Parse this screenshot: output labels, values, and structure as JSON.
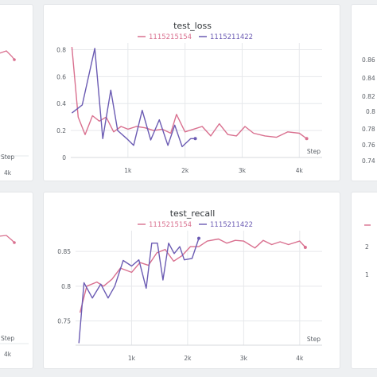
{
  "colors": {
    "run_a": "#d9708f",
    "run_b": "#6b5bb3",
    "grid": "#e6e8eb",
    "bg": "#eef0f2"
  },
  "legend": {
    "run_a": "1115215154",
    "run_b": "1115211422"
  },
  "left_partial": {
    "top": {
      "x_step_label": "Step",
      "x_tick": "4k"
    },
    "bottom": {
      "x_step_label": "Step",
      "x_tick": "4k"
    }
  },
  "right_partial": {
    "top": {
      "y_ticks": [
        "0.86",
        "0.84",
        "0.82",
        "0.8",
        "0.78",
        "0.76",
        "0.74"
      ]
    },
    "bottom": {
      "y_ticks": [
        "2",
        "1"
      ]
    }
  },
  "chart_data": [
    {
      "type": "line",
      "title": "test_loss",
      "xlabel": "Step",
      "ylabel": "",
      "xlim": [
        0,
        4400
      ],
      "ylim": [
        0,
        0.85
      ],
      "x_ticks": [
        {
          "v": 1000,
          "label": "1k"
        },
        {
          "v": 2000,
          "label": "2k"
        },
        {
          "v": 3000,
          "label": "3k"
        },
        {
          "v": 4000,
          "label": "4k"
        }
      ],
      "y_ticks": [
        {
          "v": 0,
          "label": "0"
        },
        {
          "v": 0.2,
          "label": "0.2"
        },
        {
          "v": 0.4,
          "label": "0.4"
        },
        {
          "v": 0.6,
          "label": "0.6"
        },
        {
          "v": 0.8,
          "label": "0.8"
        }
      ],
      "series": [
        {
          "name": "1115215154",
          "color": "#d9708f",
          "x": [
            20,
            130,
            250,
            380,
            500,
            620,
            750,
            880,
            1000,
            1150,
            1300,
            1450,
            1600,
            1750,
            1850,
            2000,
            2150,
            2300,
            2450,
            2600,
            2750,
            2900,
            3050,
            3200,
            3400,
            3600,
            3800,
            4000,
            4130
          ],
          "y": [
            0.82,
            0.3,
            0.17,
            0.31,
            0.27,
            0.3,
            0.19,
            0.23,
            0.21,
            0.23,
            0.22,
            0.2,
            0.21,
            0.18,
            0.32,
            0.19,
            0.21,
            0.23,
            0.16,
            0.25,
            0.17,
            0.16,
            0.23,
            0.18,
            0.16,
            0.15,
            0.19,
            0.18,
            0.14
          ]
        },
        {
          "name": "1115211422",
          "color": "#6b5bb3",
          "x": [
            20,
            200,
            420,
            560,
            700,
            820,
            980,
            1100,
            1250,
            1400,
            1550,
            1700,
            1820,
            1950,
            2100,
            2180
          ],
          "y": [
            0.33,
            0.39,
            0.81,
            0.14,
            0.5,
            0.2,
            0.14,
            0.09,
            0.35,
            0.13,
            0.28,
            0.09,
            0.24,
            0.08,
            0.14,
            0.14
          ]
        }
      ]
    },
    {
      "type": "line",
      "title": "test_recall",
      "xlabel": "Step",
      "ylabel": "",
      "xlim": [
        0,
        4400
      ],
      "ylim": [
        0.715,
        0.88
      ],
      "x_ticks": [
        {
          "v": 1000,
          "label": "1k"
        },
        {
          "v": 2000,
          "label": "2k"
        },
        {
          "v": 3000,
          "label": "3k"
        },
        {
          "v": 4000,
          "label": "4k"
        }
      ],
      "y_ticks": [
        {
          "v": 0.75,
          "label": "0.75"
        },
        {
          "v": 0.8,
          "label": "0.8"
        },
        {
          "v": 0.85,
          "label": "0.85"
        }
      ],
      "series": [
        {
          "name": "1115215154",
          "color": "#d9708f",
          "x": [
            80,
            200,
            380,
            500,
            650,
            800,
            1000,
            1150,
            1300,
            1450,
            1600,
            1750,
            1900,
            2050,
            2200,
            2350,
            2550,
            2700,
            2850,
            3000,
            3200,
            3350,
            3500,
            3650,
            3800,
            4000,
            4100
          ],
          "y": [
            0.762,
            0.8,
            0.806,
            0.8,
            0.81,
            0.826,
            0.82,
            0.834,
            0.83,
            0.848,
            0.853,
            0.836,
            0.844,
            0.857,
            0.857,
            0.865,
            0.868,
            0.862,
            0.866,
            0.865,
            0.855,
            0.866,
            0.86,
            0.864,
            0.86,
            0.865,
            0.856
          ]
        },
        {
          "name": "1115211422",
          "color": "#6b5bb3",
          "x": [
            60,
            150,
            300,
            450,
            580,
            700,
            850,
            1000,
            1130,
            1260,
            1360,
            1460,
            1560,
            1660,
            1760,
            1860,
            1940,
            2080,
            2200
          ],
          "y": [
            0.718,
            0.805,
            0.783,
            0.803,
            0.783,
            0.8,
            0.837,
            0.829,
            0.838,
            0.797,
            0.862,
            0.862,
            0.809,
            0.862,
            0.847,
            0.857,
            0.838,
            0.84,
            0.869
          ]
        }
      ]
    }
  ]
}
